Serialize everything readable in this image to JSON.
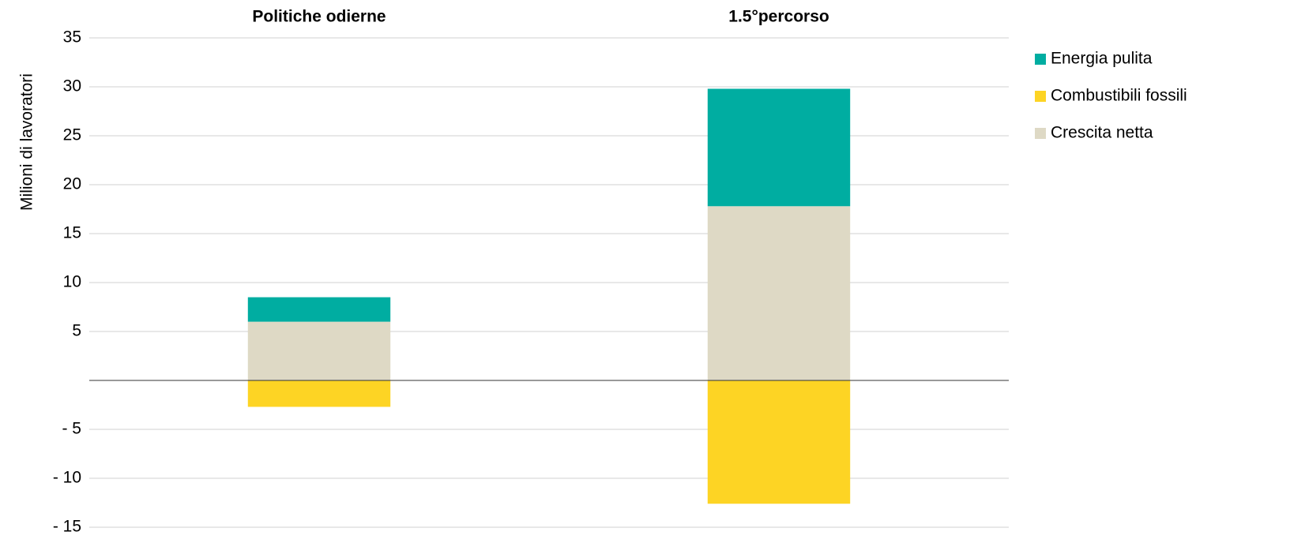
{
  "chart_data": {
    "type": "stacked_bar",
    "y_label": "Milioni di lavoratori",
    "categories": [
      "Politiche odierne",
      "1.5°percorso"
    ],
    "series": [
      {
        "name": "Energia pulita",
        "color": "#00ada1",
        "values": [
          2.5,
          12
        ]
      },
      {
        "name": "Combustibili fossili",
        "color": "#fdd424",
        "values": [
          -2.7,
          -12.6
        ]
      },
      {
        "name": "Crescita netta",
        "color": "#ded9c5",
        "values": [
          6,
          17.8
        ]
      }
    ],
    "ylim": [
      -15,
      35
    ],
    "yticks": [
      {
        "value": -15,
        "label": "- 15"
      },
      {
        "value": -10,
        "label": "- 10"
      },
      {
        "value": -5,
        "label": "- 5"
      },
      5,
      10,
      15,
      20,
      25,
      30,
      35
    ],
    "grid": true,
    "legend": "right"
  }
}
